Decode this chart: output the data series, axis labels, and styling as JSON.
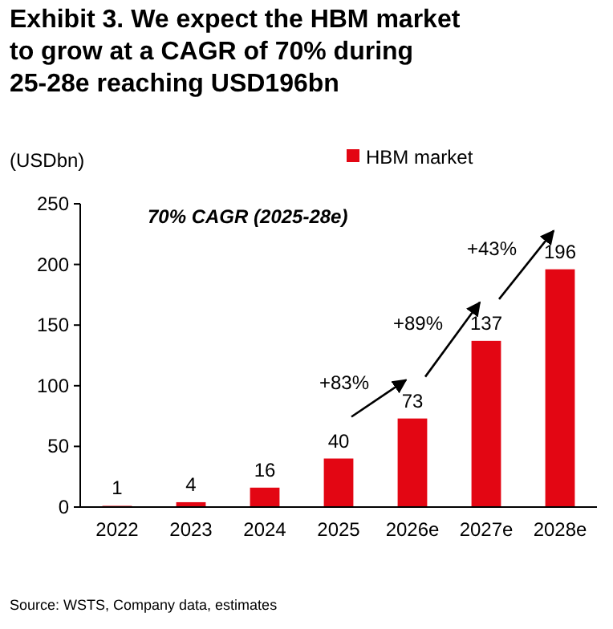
{
  "chart_data": {
    "type": "bar",
    "title": "Exhibit 3. We expect the HBM market to grow at a CAGR of 70% during 25-28e reaching USD196bn",
    "ylabel": "(USDbn)",
    "categories": [
      "2022",
      "2023",
      "2024",
      "2025",
      "2026e",
      "2027e",
      "2028e"
    ],
    "series": [
      {
        "name": "HBM market",
        "color": "#e30613",
        "values": [
          1,
          4,
          16,
          40,
          73,
          137,
          196
        ]
      }
    ],
    "ylim": [
      0,
      250
    ],
    "yticks": [
      0,
      50,
      100,
      150,
      200,
      250
    ],
    "grid": false,
    "legend": "top",
    "data_labels": true,
    "annotations": [
      "70% CAGR (2025-28e)",
      "+83%",
      "+89%",
      "+43%",
      "Source: WSTS, Company data, estimates"
    ]
  }
}
